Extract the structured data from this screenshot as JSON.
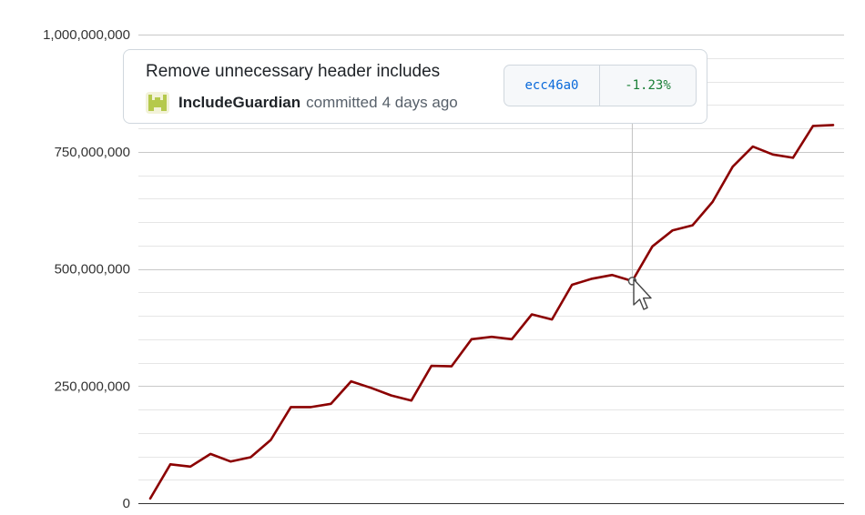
{
  "chart_data": {
    "type": "line",
    "ylim": [
      0,
      1000000000
    ],
    "y_ticks": [
      "0",
      "250,000,000",
      "500,000,000",
      "750,000,000",
      "1,000,000,000"
    ],
    "y_tick_values": [
      0,
      250000000,
      500000000,
      750000000,
      1000000000
    ],
    "grid": true,
    "series": [
      {
        "color": "#8b0000",
        "values": [
          10000000,
          83000000,
          78000000,
          105000000,
          89000000,
          98000000,
          135000000,
          205000000,
          205000000,
          212000000,
          260000000,
          246000000,
          230000000,
          219000000,
          293000000,
          292000000,
          350000000,
          355000000,
          350000000,
          403000000,
          392000000,
          466000000,
          479000000,
          487000000,
          474000000,
          548000000,
          582000000,
          593000000,
          643000000,
          718000000,
          761000000,
          744000000,
          737000000,
          805000000,
          807000000
        ]
      }
    ],
    "highlighted_index": 24
  },
  "tooltip": {
    "title": "Remove unnecessary header includes",
    "author": "IncludeGuardian",
    "verb": "committed",
    "time": "4 days ago",
    "sha": "ecc46a0",
    "delta": "-1.23%"
  },
  "colors": {
    "line": "#8b0000",
    "grid_major": "#c8c8c8",
    "grid_minor": "#e6e6e6",
    "sha": "#0969da",
    "delta": "#1a7f37"
  }
}
